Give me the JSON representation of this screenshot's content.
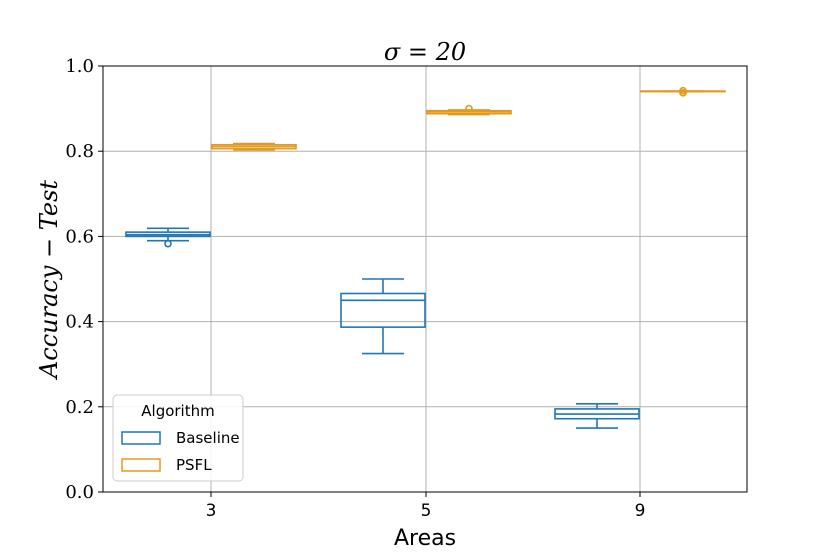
{
  "chart_data": {
    "type": "box",
    "title": "σ = 20",
    "xlabel": "Areas",
    "ylabel": "Accuracy − Test",
    "categories": [
      "3",
      "5",
      "9"
    ],
    "ylim": [
      0.0,
      1.0
    ],
    "yticks": [
      "0.0",
      "0.2",
      "0.4",
      "0.6",
      "0.8",
      "1.0"
    ],
    "grid": true,
    "legend": {
      "title": "Algorithm",
      "placement": "bottom-left"
    },
    "series": [
      {
        "name": "Baseline",
        "color": "#1f77b4",
        "boxes": [
          {
            "category": "3",
            "whisker_low": 0.59,
            "q1": 0.6,
            "median": 0.604,
            "q3": 0.61,
            "whisker_high": 0.619,
            "outliers": [
              0.583
            ]
          },
          {
            "category": "5",
            "whisker_low": 0.325,
            "q1": 0.387,
            "median": 0.45,
            "q3": 0.466,
            "whisker_high": 0.5,
            "outliers": []
          },
          {
            "category": "9",
            "whisker_low": 0.15,
            "q1": 0.172,
            "median": 0.183,
            "q3": 0.195,
            "whisker_high": 0.207,
            "outliers": []
          }
        ]
      },
      {
        "name": "PSFL",
        "color": "#e39a1c",
        "boxes": [
          {
            "category": "3",
            "whisker_low": 0.803,
            "q1": 0.806,
            "median": 0.811,
            "q3": 0.815,
            "whisker_high": 0.818,
            "outliers": []
          },
          {
            "category": "5",
            "whisker_low": 0.886,
            "q1": 0.888,
            "median": 0.892,
            "q3": 0.895,
            "whisker_high": 0.897,
            "outliers": [
              0.9
            ]
          },
          {
            "category": "9",
            "whisker_low": 0.94,
            "q1": 0.94,
            "median": 0.941,
            "q3": 0.941,
            "whisker_high": 0.941,
            "outliers": [
              0.937,
              0.942
            ]
          }
        ]
      }
    ]
  }
}
